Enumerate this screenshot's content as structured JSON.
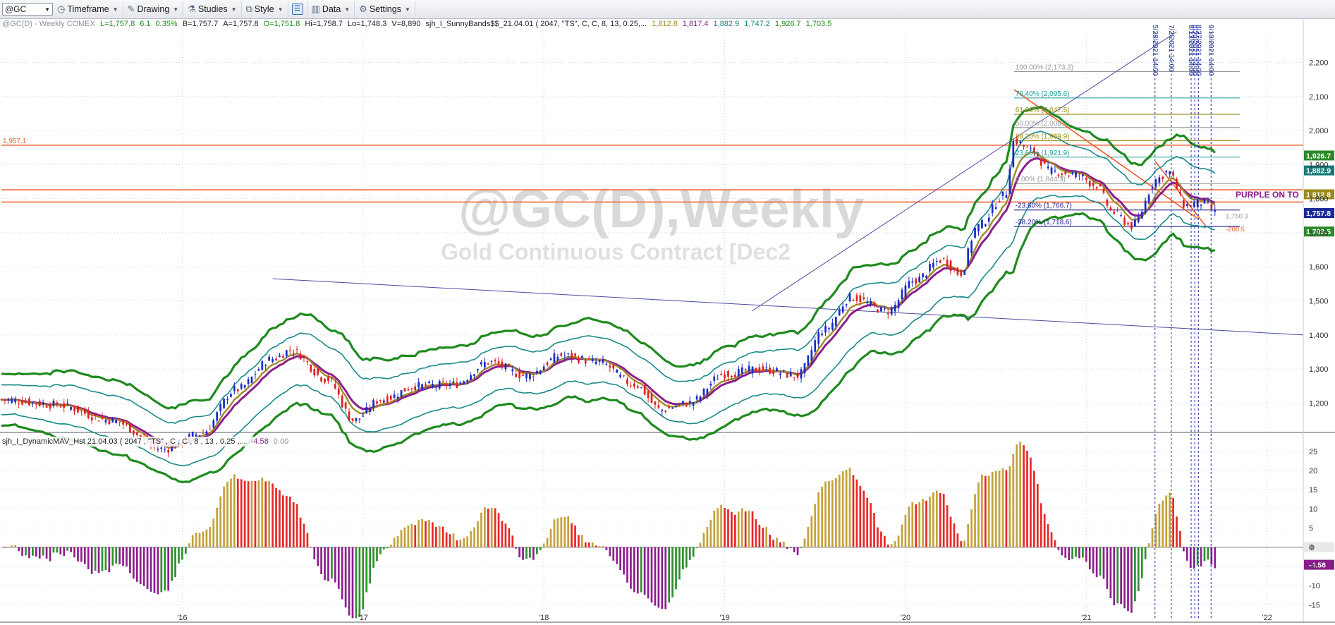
{
  "toolbar": {
    "symbol": "@GC",
    "items": [
      {
        "label": "Timeframe",
        "icon": "clock-icon"
      },
      {
        "label": "Drawing",
        "icon": "pencil-icon"
      },
      {
        "label": "Studies",
        "icon": "studies-icon"
      },
      {
        "label": "Style",
        "icon": "style-icon"
      },
      {
        "label": "Data",
        "icon": "data-icon"
      },
      {
        "label": "Settings",
        "icon": "gear-icon"
      }
    ]
  },
  "status_line": [
    {
      "text": "@GC(D) - Weekly  COMEX",
      "color": "#8a8f98"
    },
    {
      "text": "L=1,757.8",
      "color": "#1a8a1a"
    },
    {
      "text": "6.1",
      "color": "#1a8a1a"
    },
    {
      "text": "0.35%",
      "color": "#1a8a1a"
    },
    {
      "text": "B=1,757.7",
      "color": "#222222"
    },
    {
      "text": "A=1,757.8",
      "color": "#222222"
    },
    {
      "text": "O=1,751.8",
      "color": "#1a8a1a"
    },
    {
      "text": "Hi=1,758.7",
      "color": "#222222"
    },
    {
      "text": "Lo=1,748.3",
      "color": "#222222"
    },
    {
      "text": "V=8,890",
      "color": "#222222"
    },
    {
      "text": "sjh_I_SunnyBands$$_21.04.01 ( 2047, \"TS\", C, C, 8, 13, 0.25,...",
      "color": "#222222"
    },
    {
      "text": "1,812.8",
      "color": "#9a8a1a"
    },
    {
      "text": "1,817.4",
      "color": "#8b1a8b"
    },
    {
      "text": "1,882.9",
      "color": "#1a8080"
    },
    {
      "text": "1,747.2",
      "color": "#1a8080"
    },
    {
      "text": "1,926.7",
      "color": "#1a8a1a"
    },
    {
      "text": "1,703.5",
      "color": "#1a8a1a"
    }
  ],
  "sub_status_line": [
    {
      "text": "sjh_I_DynamicMAV_Hst 21.04.03 ( 2047 , \"TS\" , C , C , 8 , 13 , 0.25 ,...",
      "color": "#222222"
    },
    {
      "text": "-4.58",
      "color": "#8b1a8b"
    },
    {
      "text": "0.00",
      "color": "#8a8f98"
    }
  ],
  "watermark": {
    "title": "@GC(D),Weekly",
    "subtitle": "Gold Continuous Contract [Dec2"
  },
  "chart_data": {
    "type": "candlestick",
    "main_axis": {
      "ticks": [
        2200,
        2100,
        2000,
        1900,
        1800,
        1700,
        1600,
        1500,
        1400,
        1300,
        1200
      ],
      "labels": [
        "2,200",
        "2,100",
        "2,000",
        "1,900",
        "1,800",
        "1,700",
        "1,600",
        "1,500",
        "1,400",
        "1,300",
        "1,200"
      ],
      "ylim": [
        1120,
        2290
      ]
    },
    "sub_axis": {
      "ticks": [
        25,
        20,
        15,
        10,
        5,
        0,
        -5,
        -10,
        -15
      ],
      "labels": [
        "25",
        "20",
        "15",
        "10",
        "5",
        "0",
        "-5",
        "-10",
        "-15"
      ],
      "ylim": [
        -19,
        29
      ]
    },
    "x_axis": {
      "range": [
        2015.0,
        2022.2
      ],
      "ticks": [
        2016,
        2017,
        2018,
        2019,
        2020,
        2021,
        2022
      ],
      "labels": [
        "'16",
        "'17",
        "'18",
        "'19",
        "'20",
        "'21",
        "'22"
      ]
    },
    "close_anchors": [
      [
        2015.0,
        1210
      ],
      [
        2015.3,
        1195
      ],
      [
        2015.6,
        1150
      ],
      [
        2015.9,
        1065
      ],
      [
        2016.1,
        1110
      ],
      [
        2016.3,
        1240
      ],
      [
        2016.5,
        1330
      ],
      [
        2016.6,
        1355
      ],
      [
        2016.8,
        1270
      ],
      [
        2016.95,
        1150
      ],
      [
        2017.1,
        1210
      ],
      [
        2017.3,
        1250
      ],
      [
        2017.5,
        1255
      ],
      [
        2017.7,
        1320
      ],
      [
        2017.9,
        1280
      ],
      [
        2018.1,
        1340
      ],
      [
        2018.3,
        1320
      ],
      [
        2018.5,
        1255
      ],
      [
        2018.65,
        1180
      ],
      [
        2018.8,
        1200
      ],
      [
        2019.0,
        1285
      ],
      [
        2019.2,
        1300
      ],
      [
        2019.4,
        1280
      ],
      [
        2019.55,
        1415
      ],
      [
        2019.7,
        1510
      ],
      [
        2019.9,
        1470
      ],
      [
        2020.05,
        1560
      ],
      [
        2020.2,
        1620
      ],
      [
        2020.3,
        1580
      ],
      [
        2020.4,
        1720
      ],
      [
        2020.55,
        1810
      ],
      [
        2020.6,
        1970
      ],
      [
        2020.7,
        1940
      ],
      [
        2020.8,
        1880
      ],
      [
        2020.95,
        1870
      ],
      [
        2021.05,
        1840
      ],
      [
        2021.15,
        1760
      ],
      [
        2021.25,
        1720
      ],
      [
        2021.4,
        1860
      ],
      [
        2021.45,
        1880
      ],
      [
        2021.55,
        1780
      ],
      [
        2021.65,
        1790
      ],
      [
        2021.72,
        1758
      ]
    ],
    "histogram": {
      "colors": {
        "gold": "#c4a23c",
        "red": "#e82828",
        "green": "#2f8f2f",
        "purple": "#8e1e8e"
      },
      "last_value": "-4.58",
      "zero_label": "0"
    },
    "price_levels": [
      {
        "label": "1,957.1",
        "value": 1957.1,
        "color": "#f05a28"
      },
      {
        "label": "",
        "value": 1826,
        "color": "#f06a40"
      },
      {
        "label": "",
        "value": 1790,
        "color": "#f06a40"
      }
    ],
    "fib_levels": [
      {
        "label": "100.00% (2,173.2)",
        "value": 2173.2,
        "color": "#999999"
      },
      {
        "label": "76.40% (2,095.6)",
        "value": 2095.6,
        "color": "#1a9a9a"
      },
      {
        "label": "61.80% (2,047.5)",
        "value": 2047.5,
        "color": "#9a8a1a"
      },
      {
        "label": "50.00% (2,008.7)",
        "value": 2008.7,
        "color": "#999999"
      },
      {
        "label": "38.20% (1,969.9)",
        "value": 1969.9,
        "color": "#9a8a1a"
      },
      {
        "label": "23.60% (1,921.9)",
        "value": 1921.9,
        "color": "#1a9a9a"
      },
      {
        "label": "0.00% (1,844.3)",
        "value": 1844.3,
        "color": "#999999"
      },
      {
        "label": "-23.60% (1,766.7)",
        "value": 1766.7,
        "color": "#1a1a8a"
      },
      {
        "label": "-38.20% (1,718.6)",
        "value": 1718.6,
        "color": "#1a1a8a"
      }
    ],
    "right_badges": [
      {
        "label": "1,926.7",
        "value": 1926.7,
        "color": "#2a8a2a"
      },
      {
        "label": "1,882.9",
        "value": 1882.9,
        "color": "#1a7a7a"
      },
      {
        "label": "1,812.8",
        "value": 1812.8,
        "color": "#9a8a1a"
      },
      {
        "label": "1,757.8",
        "value": 1757.8,
        "color": "#1a2a9a"
      },
      {
        "label": "1,703.5",
        "value": 1703.5,
        "color": "#2a8a2a"
      }
    ],
    "sub_badge": {
      "label": "-4.58",
      "value": -4.58,
      "color": "#8b1a8b"
    },
    "annotation": {
      "label": "PURPLE ON TO",
      "color": "#8b1a8b",
      "value": 1812
    },
    "small_labels": [
      {
        "label": "1,750.3",
        "value": 1750.3,
        "color": "#999999"
      },
      {
        "label": "-208.5",
        "value": 1712,
        "color": "#f05a28"
      }
    ],
    "vertical_markers": [
      {
        "x": 2021.38,
        "label": "5/28/2021 14:00"
      },
      {
        "x": 2021.47,
        "label": "7/2/2021 14:00"
      },
      {
        "x": 2021.58,
        "label": "8/13/2021 14:00"
      },
      {
        "x": 2021.6,
        "label": "8/20/2021 14:00"
      },
      {
        "x": 2021.62,
        "label": "8/27/2021 14:00"
      },
      {
        "x": 2021.69,
        "label": "9/10/2021 14:00"
      }
    ]
  }
}
